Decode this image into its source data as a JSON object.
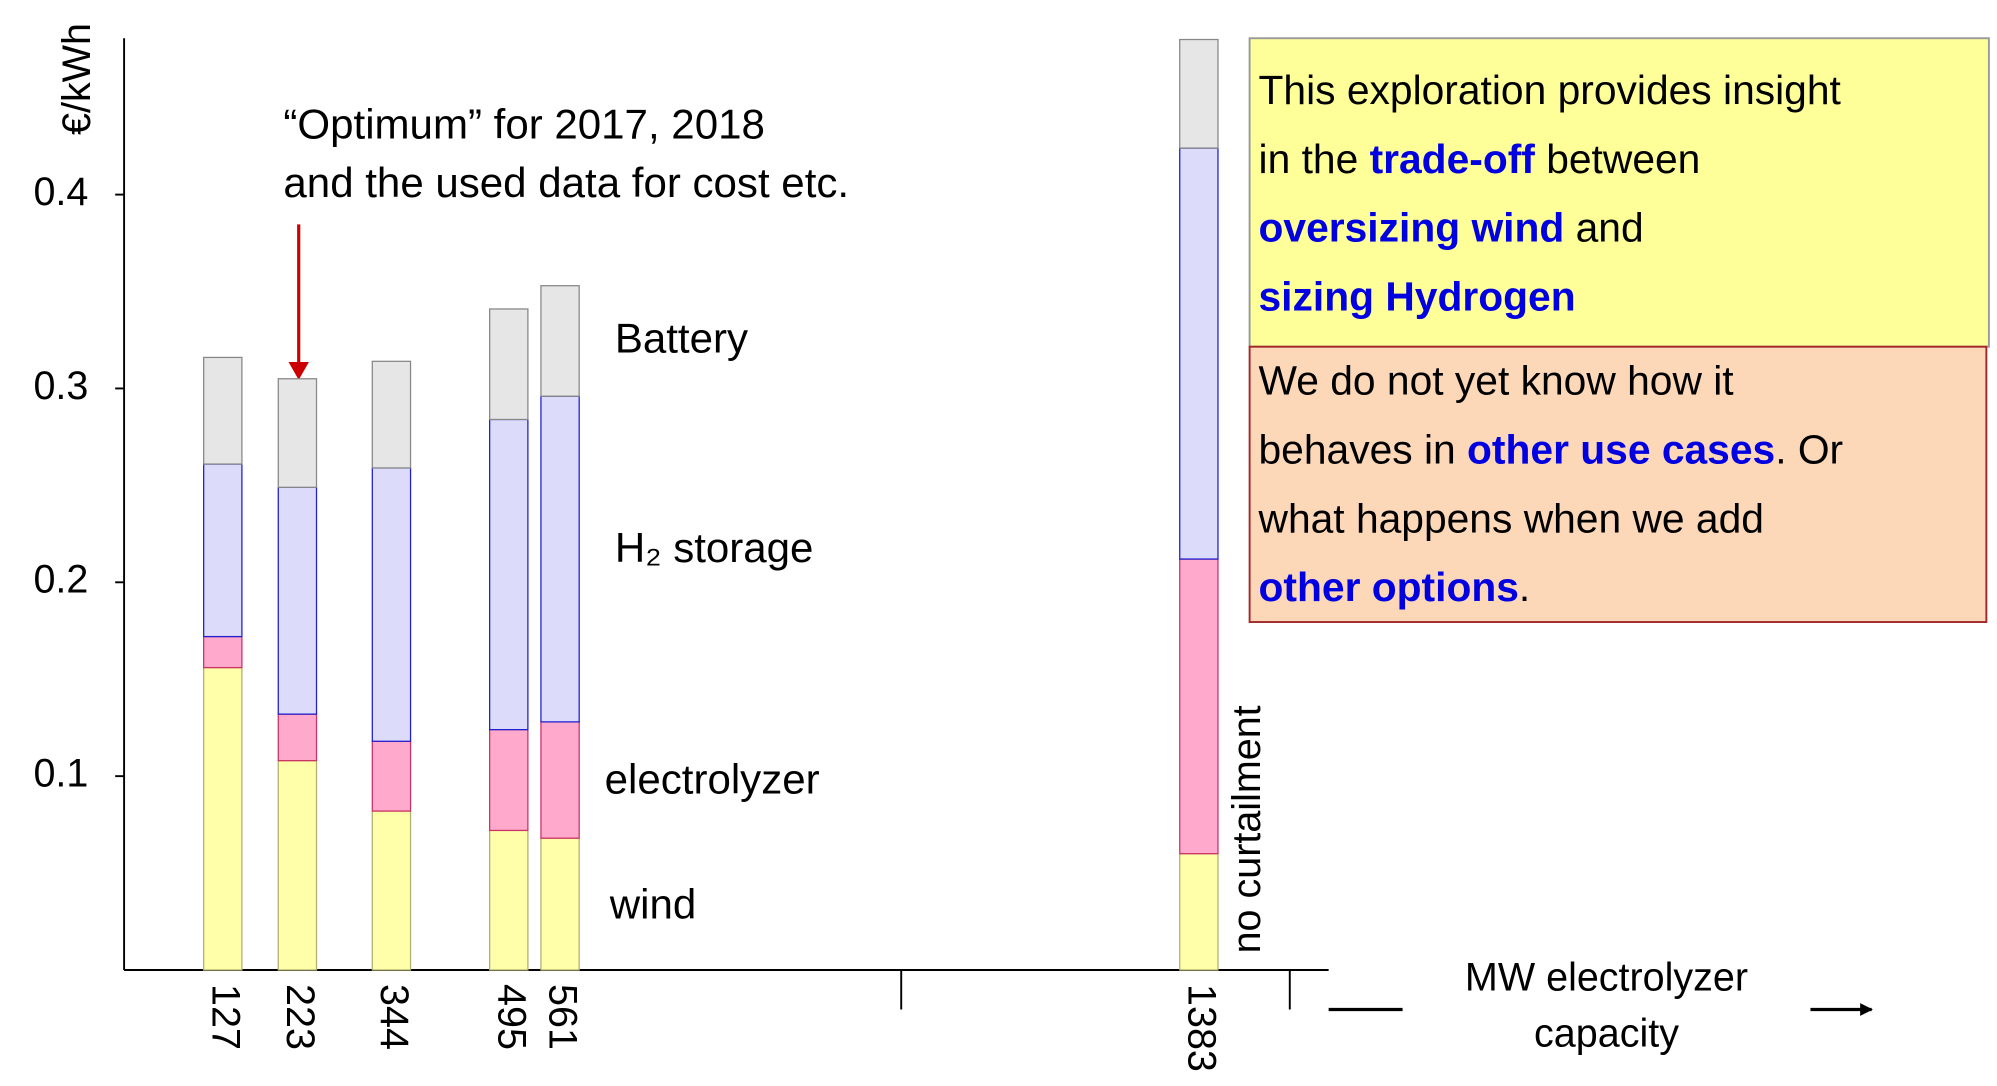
{
  "chart_data": {
    "type": "stacked_bar",
    "y_label": "€/kWh",
    "x_label": [
      "MW electrolyzer capacity"
    ],
    "x": [
      127,
      223,
      344,
      495,
      561,
      1383
    ],
    "xlim": [
      0,
      1550
    ],
    "xticks": [
      127,
      223,
      344,
      495,
      561,
      1383
    ],
    "minor_xticks": [
      1000,
      1500
    ],
    "ylim": [
      0,
      0.48
    ],
    "yticks": [
      0.1,
      0.2,
      0.3,
      0.4
    ],
    "series": [
      {
        "name": "wind",
        "color": "#ffffaa",
        "edge": "#b0b070",
        "values": [
          0.156,
          0.108,
          0.082,
          0.072,
          0.068,
          0.06
        ]
      },
      {
        "name": "electrolyzer",
        "color": "#ffaacc",
        "edge": "#cc3366",
        "values": [
          0.016,
          0.024,
          0.036,
          0.052,
          0.06,
          0.152
        ]
      },
      {
        "name": "H₂ storage",
        "color": "#dcdcfa",
        "edge": "#2020d0",
        "values": [
          0.089,
          0.117,
          0.141,
          0.16,
          0.168,
          0.212
        ]
      },
      {
        "name": "Battery",
        "color": "#e6e6e6",
        "edge": "#888888",
        "values": [
          0.055,
          0.056,
          0.055,
          0.057,
          0.057,
          0.056
        ]
      }
    ],
    "annotations": [
      "“Optimum” for 2017, 2018",
      "and the used data for cost etc.",
      "no curtailment"
    ],
    "x_label_lines": [
      "MW electrolyzer",
      "capacity"
    ],
    "boxes": [
      {
        "fill": "#ffff99",
        "border": "#999999",
        "lines": [
          [
            {
              "text": "This exploration provides insight",
              "bold": false
            }
          ],
          [
            {
              "text": "in the ",
              "bold": false
            },
            {
              "text": "trade-off",
              "bold": true
            },
            {
              "text": " between",
              "bold": false
            }
          ],
          [
            {
              "text": "oversizing wind",
              "bold": true
            },
            {
              "text": " and",
              "bold": false
            }
          ],
          [
            {
              "text": "sizing Hydrogen",
              "bold": true
            }
          ]
        ]
      },
      {
        "fill": "#fcd7b8",
        "border": "#a02828",
        "lines": [
          [
            {
              "text": "We do not yet know how it",
              "bold": false
            }
          ],
          [
            {
              "text": "behaves in ",
              "bold": false
            },
            {
              "text": "other use cases",
              "bold": true
            },
            {
              "text": ". Or",
              "bold": false
            }
          ],
          [
            {
              "text": "what happens when we add",
              "bold": false
            }
          ],
          [
            {
              "text": "other options",
              "bold": true
            },
            {
              "text": ".",
              "bold": false
            }
          ]
        ]
      }
    ]
  }
}
